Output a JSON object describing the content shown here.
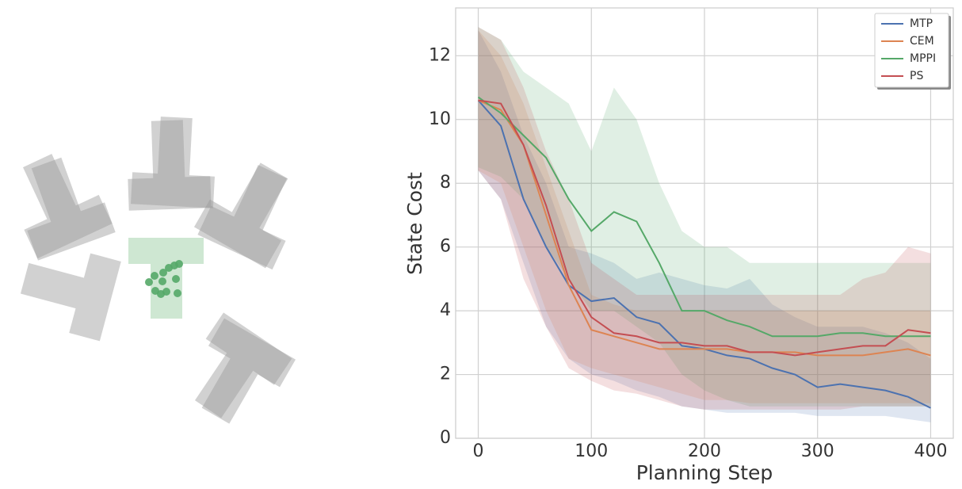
{
  "chart_data": {
    "type": "line",
    "x": [
      0,
      20,
      40,
      60,
      80,
      100,
      120,
      140,
      160,
      180,
      200,
      220,
      240,
      260,
      280,
      300,
      320,
      340,
      360,
      380,
      400
    ],
    "xlabel": "Planning Step",
    "ylabel": "State Cost",
    "xlim": [
      -20,
      420
    ],
    "ylim": [
      0,
      13.5
    ],
    "xticks": [
      0,
      100,
      200,
      300,
      400
    ],
    "yticks": [
      0,
      2,
      4,
      6,
      8,
      10,
      12
    ],
    "grid": true,
    "legend": "upper right",
    "series": [
      {
        "name": "MTP",
        "color": "#4c72b0",
        "values": [
          10.6,
          9.8,
          7.5,
          6.0,
          4.8,
          4.3,
          4.4,
          3.8,
          3.6,
          2.9,
          2.8,
          2.6,
          2.5,
          2.2,
          2.0,
          1.6,
          1.7,
          1.6,
          1.5,
          1.3,
          0.95
        ],
        "upper": [
          12.8,
          11.5,
          9.5,
          8,
          6,
          5.8,
          5.5,
          5.0,
          5.2,
          5.0,
          4.8,
          4.7,
          5.0,
          4.2,
          3.8,
          3.5,
          3.5,
          3.5,
          3.3,
          3.0,
          2.5
        ],
        "lower": [
          8.4,
          7.5,
          5.5,
          3.5,
          2.5,
          2.0,
          1.8,
          1.5,
          1.3,
          1.0,
          0.9,
          0.8,
          0.8,
          0.8,
          0.8,
          0.7,
          0.7,
          0.7,
          0.7,
          0.6,
          0.5
        ]
      },
      {
        "name": "CEM",
        "color": "#dd8452",
        "values": [
          10.6,
          10.3,
          9.2,
          7.0,
          4.8,
          3.4,
          3.2,
          3.0,
          2.8,
          2.8,
          2.8,
          2.8,
          2.7,
          2.7,
          2.7,
          2.6,
          2.6,
          2.6,
          2.7,
          2.8,
          2.6
        ],
        "upper": [
          12.8,
          12.0,
          10.5,
          8.5,
          6.5,
          4.5,
          4.2,
          4.0,
          4.0,
          4.0,
          4.0,
          4.0,
          4.0,
          4.0,
          4.0,
          4.0,
          4.0,
          4.0,
          4.0,
          4.0,
          4.0
        ],
        "lower": [
          8.4,
          8.0,
          6.0,
          4.0,
          2.5,
          2.2,
          2.0,
          1.8,
          1.6,
          1.4,
          1.2,
          1.2,
          1.1,
          1.1,
          1.1,
          1.1,
          1.1,
          1.1,
          1.1,
          1.1,
          1.1
        ]
      },
      {
        "name": "MPPI",
        "color": "#55a868",
        "values": [
          10.7,
          10.2,
          9.5,
          8.8,
          7.5,
          6.5,
          7.1,
          6.8,
          5.5,
          4.0,
          4.0,
          3.7,
          3.5,
          3.2,
          3.2,
          3.2,
          3.3,
          3.3,
          3.2,
          3.2,
          3.2
        ],
        "upper": [
          12.9,
          12.5,
          11.5,
          11,
          10.5,
          9,
          11,
          10,
          8,
          6.5,
          6,
          6,
          5.5,
          5.5,
          5.5,
          5.5,
          5.5,
          5.5,
          5.5,
          5.5,
          5.5
        ],
        "lower": [
          8.5,
          8.2,
          7.5,
          6.0,
          5.0,
          4.0,
          4.0,
          3.5,
          3.0,
          2.0,
          1.5,
          1.2,
          1.0,
          1.0,
          1.0,
          1.0,
          1.0,
          1.0,
          1.0,
          1.0,
          1.0
        ]
      },
      {
        "name": "PS",
        "color": "#c44e52",
        "values": [
          10.6,
          10.5,
          9.2,
          7.3,
          5.0,
          3.8,
          3.3,
          3.2,
          3.0,
          3.0,
          2.9,
          2.9,
          2.7,
          2.7,
          2.6,
          2.7,
          2.8,
          2.9,
          2.9,
          3.4,
          3.3
        ],
        "upper": [
          12.9,
          12.5,
          11,
          9,
          7.5,
          5.5,
          5,
          4.5,
          4.5,
          4.5,
          4.5,
          4.5,
          4.5,
          4.5,
          4.5,
          4.5,
          4.5,
          5,
          5.2,
          6,
          5.8
        ],
        "lower": [
          8.4,
          7.5,
          5,
          3.5,
          2.2,
          1.8,
          1.5,
          1.4,
          1.2,
          1.0,
          0.9,
          0.9,
          0.9,
          0.9,
          0.9,
          0.9,
          0.9,
          1,
          1,
          1,
          1
        ]
      }
    ]
  }
}
